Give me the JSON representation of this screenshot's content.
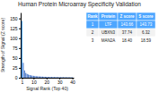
{
  "chart_data": {
    "type": "bar",
    "title": "Human Protein Microarray Specificity Validation",
    "x_label": "Signal Rank (Top 40)",
    "y_label": "Strength of Signal (Z score)",
    "x": [
      1,
      2,
      3,
      4,
      5,
      6,
      7,
      8,
      9,
      10,
      11,
      12,
      13,
      14,
      15,
      16,
      17,
      18,
      19,
      20,
      21,
      22,
      23,
      24,
      25,
      26,
      27,
      28,
      29,
      30,
      31,
      32,
      33,
      34,
      35,
      36,
      37,
      38,
      39,
      40
    ],
    "values": [
      143.66,
      37.74,
      18.4,
      12.1,
      9.5,
      8.0,
      6.8,
      5.9,
      5.2,
      4.7,
      4.3,
      3.9,
      3.6,
      3.3,
      3.1,
      2.9,
      2.7,
      2.5,
      2.4,
      2.3,
      2.2,
      2.1,
      2.0,
      1.9,
      1.85,
      1.8,
      1.75,
      1.7,
      1.65,
      1.6,
      1.55,
      1.5,
      1.45,
      1.4,
      1.35,
      1.3,
      1.25,
      1.2,
      1.15,
      1.1
    ],
    "colors": [
      "#4da6ff",
      "#4472c4",
      "#4472c4",
      "#4472c4",
      "#4472c4",
      "#4472c4",
      "#4472c4",
      "#4472c4",
      "#4472c4",
      "#4472c4",
      "#4472c4",
      "#4472c4",
      "#4472c4",
      "#4472c4",
      "#4472c4",
      "#4472c4",
      "#4472c4",
      "#4472c4",
      "#4472c4",
      "#4472c4",
      "#4472c4",
      "#4472c4",
      "#4472c4",
      "#4472c4",
      "#4472c4",
      "#4472c4",
      "#4472c4",
      "#4472c4",
      "#4472c4",
      "#4472c4",
      "#4472c4",
      "#4472c4",
      "#4472c4",
      "#4472c4",
      "#4472c4",
      "#4472c4",
      "#4472c4",
      "#4472c4",
      "#4472c4",
      "#4472c4"
    ],
    "xlim": [
      0,
      41
    ],
    "xticks": [
      1,
      10,
      20,
      30,
      40
    ],
    "ylim": [
      0,
      165
    ],
    "yticks": [
      0,
      25,
      50,
      75,
      100,
      125,
      150
    ],
    "table": {
      "headers": [
        "Rank",
        "Protein",
        "Z score",
        "S score"
      ],
      "rows": [
        [
          "1",
          "LTF",
          "143.66",
          "143.73"
        ],
        [
          "2",
          "UBXN3",
          "37.74",
          "6.32"
        ],
        [
          "3",
          "MAN2A",
          "18.40",
          "18.59"
        ]
      ]
    }
  }
}
